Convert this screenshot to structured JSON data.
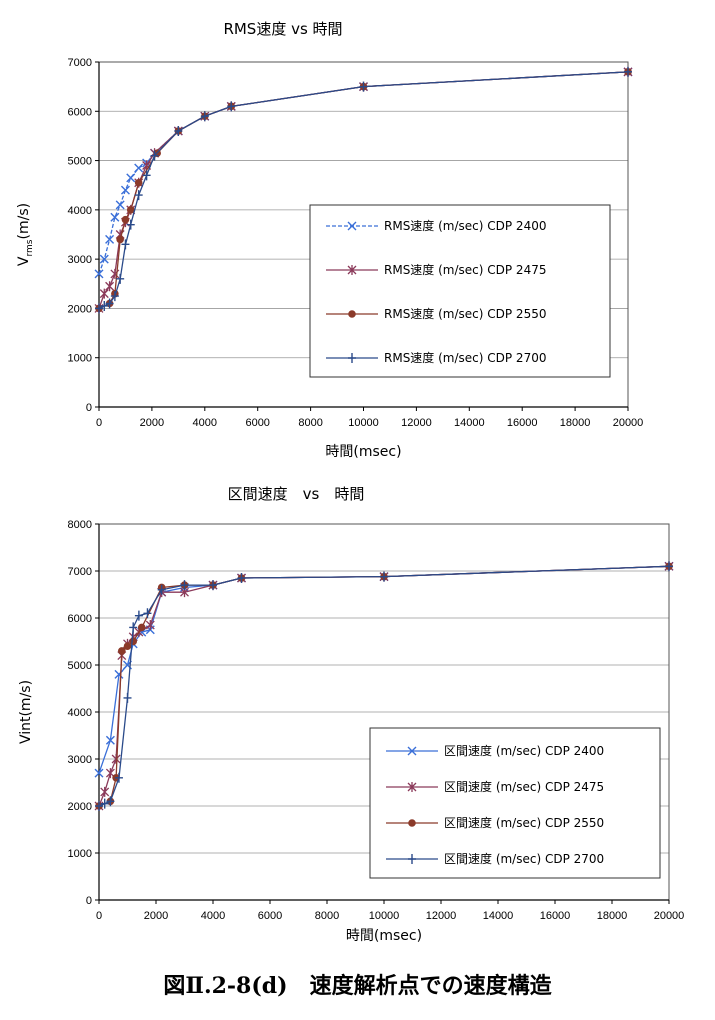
{
  "caption": "図Ⅱ.2-8(d)　速度解析点での速度構造",
  "colors": {
    "s2400": "#3a6fd8",
    "s2475": "#8b3a5a",
    "s2550": "#8b3a2a",
    "s2700": "#2a4a8a"
  },
  "chart_data": [
    {
      "type": "line",
      "title": "RMS速度 vs 時間",
      "xlabel": "時間(msec)",
      "ylabel": "Vrms(m/s)",
      "ylabel_main": "V",
      "ylabel_sub": "rms",
      "ylabel_tail": "(m/s)",
      "xlim": [
        0,
        20000
      ],
      "ylim": [
        0,
        7000
      ],
      "xticks": [
        0,
        2000,
        4000,
        6000,
        8000,
        10000,
        12000,
        14000,
        16000,
        18000,
        20000
      ],
      "yticks": [
        0,
        1000,
        2000,
        3000,
        4000,
        5000,
        6000,
        7000
      ],
      "legend_position": "right",
      "series": [
        {
          "name": "RMS速度 (m/sec) CDP 2400",
          "marker": "x",
          "color": "#3a6fd8",
          "dashed": true,
          "x": [
            0,
            200,
            400,
            600,
            800,
            1000,
            1200,
            1500,
            1800,
            2100,
            3000,
            4000,
            5000,
            10000,
            20000
          ],
          "y": [
            2700,
            3000,
            3400,
            3850,
            4100,
            4400,
            4650,
            4850,
            4950,
            5150,
            5600,
            5900,
            6100,
            6500,
            6800
          ]
        },
        {
          "name": "RMS速度 (m/sec) CDP 2475",
          "marker": "star",
          "color": "#8b3a5a",
          "dashed": false,
          "x": [
            0,
            200,
            400,
            600,
            800,
            1000,
            1200,
            1500,
            1800,
            2100,
            3000,
            4000,
            5000,
            10000,
            20000
          ],
          "y": [
            2000,
            2300,
            2450,
            2700,
            3500,
            3750,
            4000,
            4550,
            4900,
            5150,
            5600,
            5900,
            6100,
            6500,
            6800
          ]
        },
        {
          "name": "RMS速度 (m/sec) CDP 2550",
          "marker": "circle",
          "color": "#8b3a2a",
          "dashed": false,
          "x": [
            0,
            400,
            600,
            800,
            1000,
            1200,
            1500,
            2200,
            3000,
            4000,
            5000,
            10000,
            20000
          ],
          "y": [
            2000,
            2100,
            2300,
            3400,
            3800,
            4000,
            4550,
            5150,
            5600,
            5900,
            6100,
            6500,
            6800
          ]
        },
        {
          "name": "RMS速度 (m/sec) CDP 2700",
          "marker": "plus",
          "color": "#2a4a8a",
          "dashed": false,
          "x": [
            0,
            200,
            400,
            600,
            800,
            1000,
            1200,
            1500,
            1800,
            2100,
            3000,
            4000,
            5000,
            10000,
            20000
          ],
          "y": [
            2000,
            2050,
            2100,
            2250,
            2600,
            3300,
            3700,
            4300,
            4700,
            5100,
            5600,
            5900,
            6100,
            6500,
            6800
          ]
        }
      ]
    },
    {
      "type": "line",
      "title": "区間速度　vs　時間",
      "xlabel": "時間(msec)",
      "ylabel": "Vint(m/s)",
      "xlim": [
        0,
        20000
      ],
      "ylim": [
        0,
        8000
      ],
      "xticks": [
        0,
        2000,
        4000,
        6000,
        8000,
        10000,
        12000,
        14000,
        16000,
        18000,
        20000
      ],
      "yticks": [
        0,
        1000,
        2000,
        3000,
        4000,
        5000,
        6000,
        7000,
        8000
      ],
      "legend_position": "right",
      "series": [
        {
          "name": "区間速度 (m/sec) CDP 2400",
          "marker": "x",
          "color": "#3a6fd8",
          "dashed": false,
          "x": [
            0,
            400,
            700,
            1000,
            1200,
            1500,
            1800,
            2200,
            3000,
            4000,
            5000,
            10000,
            20000
          ],
          "y": [
            2700,
            3400,
            4800,
            5000,
            5450,
            5700,
            5750,
            6550,
            6650,
            6700,
            6850,
            6880,
            7100
          ]
        },
        {
          "name": "区間速度 (m/sec) CDP 2475",
          "marker": "star",
          "color": "#8b3a5a",
          "dashed": false,
          "x": [
            0,
            200,
            400,
            600,
            800,
            1000,
            1200,
            1400,
            1800,
            2200,
            3000,
            4000,
            5000,
            10000,
            20000
          ],
          "y": [
            2000,
            2300,
            2700,
            3000,
            5200,
            5450,
            5600,
            5700,
            5850,
            6550,
            6550,
            6700,
            6850,
            6880,
            7100
          ]
        },
        {
          "name": "区間速度 (m/sec) CDP 2550",
          "marker": "circle",
          "color": "#8b3a2a",
          "dashed": false,
          "x": [
            0,
            400,
            600,
            800,
            1000,
            1200,
            1500,
            2200,
            3000,
            4000,
            5000,
            10000,
            20000
          ],
          "y": [
            2000,
            2100,
            2600,
            5300,
            5400,
            5500,
            5800,
            6650,
            6700,
            6700,
            6850,
            6880,
            7100
          ]
        },
        {
          "name": "区間速度 (m/sec) CDP 2700",
          "marker": "plus",
          "color": "#2a4a8a",
          "dashed": false,
          "x": [
            0,
            200,
            400,
            700,
            1000,
            1200,
            1400,
            1700,
            2200,
            3000,
            4000,
            5000,
            10000,
            20000
          ],
          "y": [
            2000,
            2050,
            2100,
            2600,
            4300,
            5800,
            6050,
            6100,
            6600,
            6700,
            6700,
            6850,
            6880,
            7100
          ]
        }
      ]
    }
  ]
}
